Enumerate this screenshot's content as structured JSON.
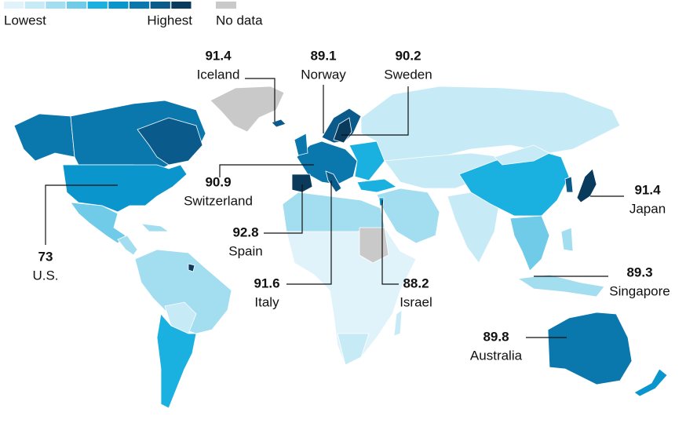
{
  "legend": {
    "low_label": "Lowest",
    "high_label": "Highest",
    "no_data_label": "No data",
    "colors": [
      "#e0f3fa",
      "#c6eaf6",
      "#a3ddf0",
      "#6fcbe8",
      "#1ab1e0",
      "#0b95cd",
      "#0a77ad",
      "#0a5b8c",
      "#0a3a5c"
    ],
    "no_data_color": "#c9c9c9"
  },
  "callouts": [
    {
      "value": 91.4,
      "label": "Iceland"
    },
    {
      "value": 89.1,
      "label": "Norway"
    },
    {
      "value": 90.2,
      "label": "Sweden"
    },
    {
      "value": 90.9,
      "label": "Switzerland"
    },
    {
      "value": 73,
      "label": "U.S."
    },
    {
      "value": 92.8,
      "label": "Spain"
    },
    {
      "value": 91.6,
      "label": "Italy"
    },
    {
      "value": 88.2,
      "label": "Israel"
    },
    {
      "value": 91.4,
      "label": "Japan"
    },
    {
      "value": 89.3,
      "label": "Singapore"
    },
    {
      "value": 89.8,
      "label": "Australia"
    }
  ]
}
